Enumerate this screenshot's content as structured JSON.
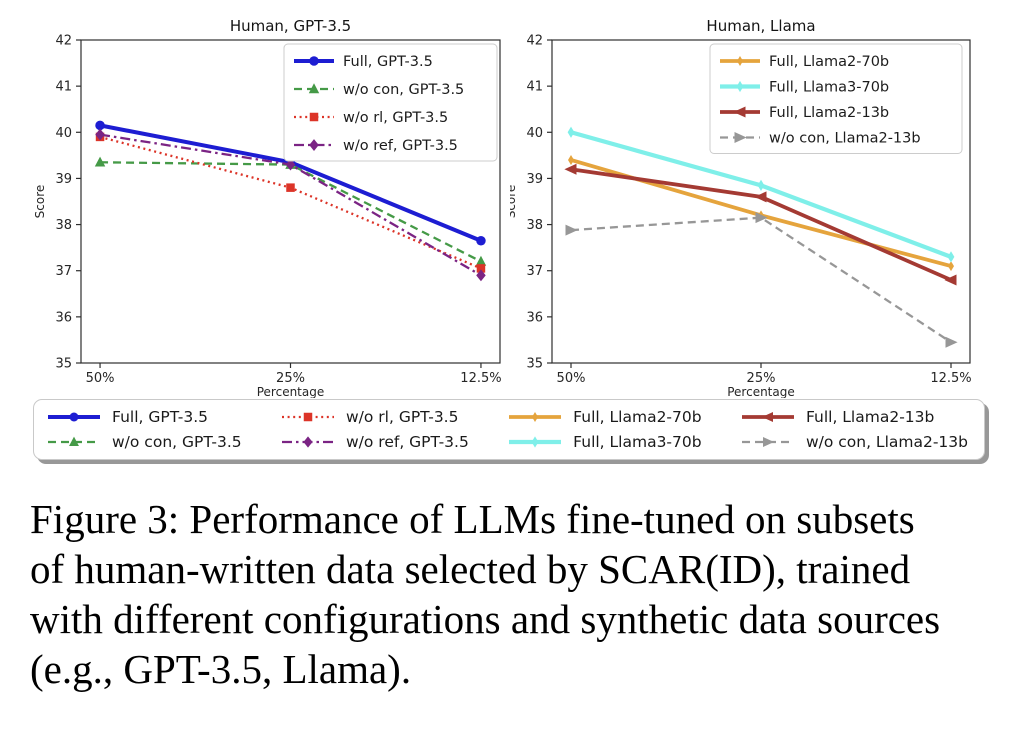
{
  "chart_data": [
    {
      "type": "line",
      "title": "Human, GPT-3.5",
      "xlabel": "Percentage",
      "ylabel": "Score",
      "categories": [
        "50%",
        "25%",
        "12.5%"
      ],
      "ylim": [
        35,
        42
      ],
      "yticks": [
        35,
        36,
        37,
        38,
        39,
        40,
        41,
        42
      ],
      "grid": false,
      "legend_position": "upper right",
      "series": [
        {
          "name": "Full, GPT-3.5",
          "color": "#1d1dd2",
          "dash": "solid",
          "marker": "circle",
          "line_width": 4,
          "marker_size": 9.5,
          "values": [
            40.15,
            39.35,
            37.65
          ]
        },
        {
          "name": "w/o con, GPT-3.5",
          "color": "#459a47",
          "dash": "dashed",
          "marker": "triangle-up",
          "line_width": 2.3,
          "marker_size": 9.5,
          "values": [
            39.35,
            39.3,
            37.2
          ]
        },
        {
          "name": "w/o rl, GPT-3.5",
          "color": "#dc3428",
          "dash": "dotted",
          "marker": "square",
          "line_width": 2.3,
          "marker_size": 8.5,
          "values": [
            39.9,
            38.8,
            37.05
          ]
        },
        {
          "name": "w/o ref, GPT-3.5",
          "color": "#7b2484",
          "dash": "dashdot",
          "marker": "diamond",
          "line_width": 2.3,
          "marker_size": 9.5,
          "values": [
            39.95,
            39.3,
            36.9
          ]
        }
      ]
    },
    {
      "type": "line",
      "title": "Human, Llama",
      "xlabel": "Percentage",
      "ylabel": "Score",
      "categories": [
        "50%",
        "25%",
        "12.5%"
      ],
      "ylim": [
        35,
        42
      ],
      "yticks": [
        35,
        36,
        37,
        38,
        39,
        40,
        41,
        42
      ],
      "grid": false,
      "legend_position": "upper right",
      "series": [
        {
          "name": "Full, Llama2-70b",
          "color": "#e5a43d",
          "dash": "solid",
          "marker": "thin-diamond",
          "line_width": 3.8,
          "marker_size": 8,
          "values": [
            39.4,
            38.2,
            37.1
          ]
        },
        {
          "name": "Full, Llama3-70b",
          "color": "#7fefe9",
          "dash": "solid",
          "marker": "thin-diamond",
          "line_width": 4.2,
          "marker_size": 9,
          "values": [
            40.0,
            38.85,
            37.3
          ]
        },
        {
          "name": "Full, Llama2-13b",
          "color": "#a43a33",
          "dash": "solid",
          "marker": "triangle-left",
          "line_width": 3.8,
          "marker_size": 11,
          "values": [
            39.2,
            38.6,
            36.8
          ]
        },
        {
          "name": "w/o con, Llama2-13b",
          "color": "#979797",
          "dash": "dashed",
          "marker": "triangle-right",
          "line_width": 2.3,
          "marker_size": 11,
          "values": [
            37.88,
            38.15,
            35.45
          ]
        }
      ]
    }
  ],
  "figure_legend": {
    "entries": [
      {
        "label": "Full, GPT-3.5",
        "color": "#1d1dd2",
        "dash": "solid",
        "marker": "circle",
        "line_width": 4,
        "marker_size": 9
      },
      {
        "label": "w/o con, GPT-3.5",
        "color": "#459a47",
        "dash": "dashed",
        "marker": "triangle-up",
        "line_width": 2.3,
        "marker_size": 9
      },
      {
        "label": "w/o rl, GPT-3.5",
        "color": "#dc3428",
        "dash": "dotted",
        "marker": "square",
        "line_width": 2.3,
        "marker_size": 8.5
      },
      {
        "label": "w/o ref, GPT-3.5",
        "color": "#7b2484",
        "dash": "dashdot",
        "marker": "diamond",
        "line_width": 2.3,
        "marker_size": 9
      },
      {
        "label": "Full, Llama2-70b",
        "color": "#e5a43d",
        "dash": "solid",
        "marker": "thin-diamond",
        "line_width": 3.8,
        "marker_size": 8
      },
      {
        "label": "Full, Llama3-70b",
        "color": "#7fefe9",
        "dash": "solid",
        "marker": "thin-diamond",
        "line_width": 4.2,
        "marker_size": 9
      },
      {
        "label": "Full, Llama2-13b",
        "color": "#a43a33",
        "dash": "solid",
        "marker": "triangle-left",
        "line_width": 3.8,
        "marker_size": 10
      },
      {
        "label": "w/o con, Llama2-13b",
        "color": "#979797",
        "dash": "dashed",
        "marker": "triangle-right",
        "line_width": 2.3,
        "marker_size": 10
      }
    ]
  },
  "caption": {
    "text": "Figure 3: Performance of LLMs fine-tuned on subsets\nof human-written data selected by SCAR(ID), trained\nwith different configurations and synthetic data sources\n(e.g., GPT-3.5, Llama)."
  }
}
